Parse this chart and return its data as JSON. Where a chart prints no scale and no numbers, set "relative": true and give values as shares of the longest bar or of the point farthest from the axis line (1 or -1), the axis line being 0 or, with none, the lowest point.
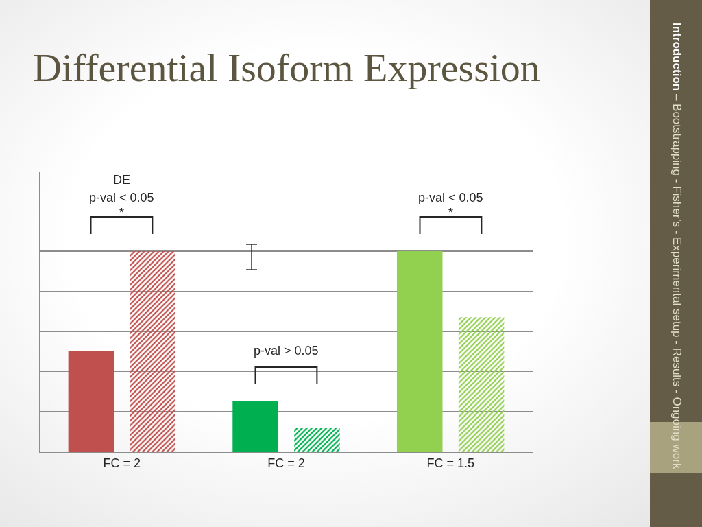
{
  "chart_data": {
    "type": "bar",
    "title": "Differential Isoform Expression",
    "categories": [
      "FC = 2",
      "FC = 2",
      "FC = 1.5"
    ],
    "series": [
      {
        "colors": [
          "#c0504d",
          "#00b050",
          "#92d050"
        ],
        "values": [
          0.5,
          0.25,
          1
        ]
      },
      {
        "colors": [
          "#c0504d",
          "#00b050",
          "#92d050"
        ],
        "values": [
          1,
          0.12,
          0.67
        ]
      }
    ],
    "relative": true,
    "grid": "y",
    "annotations": [
      "DE",
      "p-val < 0.05",
      "*",
      "p-val > 0.05",
      "p-val < 0.05",
      "*",
      "Introduction",
      "– Bootstrapping - Fisher’s - Experimental setup - Results - Ongoing work"
    ]
  }
}
